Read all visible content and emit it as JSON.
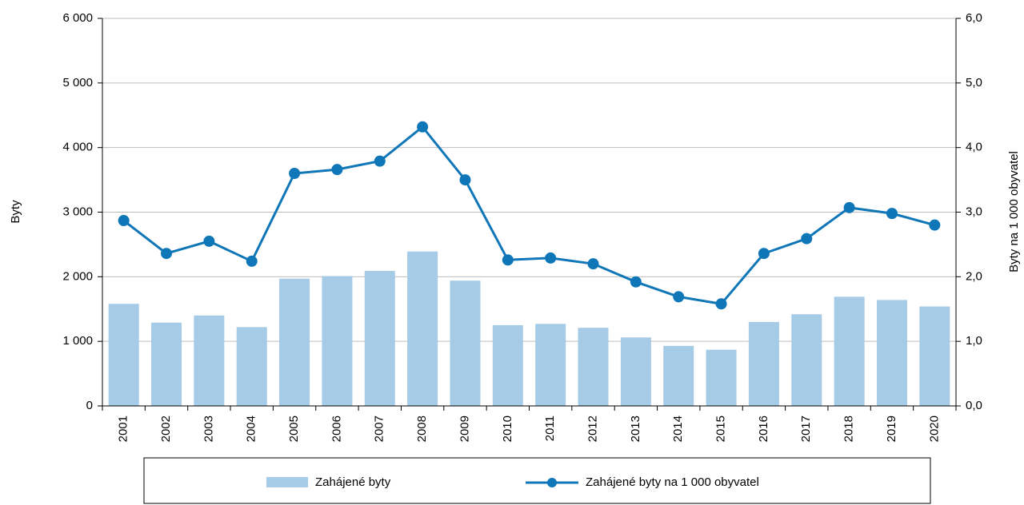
{
  "chart_data": {
    "type": "bar_line",
    "categories": [
      "2001",
      "2002",
      "2003",
      "2004",
      "2005",
      "2006",
      "2007",
      "2008",
      "2009",
      "2010",
      "2011",
      "2012",
      "2013",
      "2014",
      "2015",
      "2016",
      "2017",
      "2018",
      "2019",
      "2020"
    ],
    "series": [
      {
        "name": "Zahájené byty",
        "type": "bar",
        "color": "#a6cbe6",
        "axis": "y",
        "values": [
          1580,
          1290,
          1400,
          1220,
          1970,
          2010,
          2090,
          2390,
          1940,
          1250,
          1270,
          1210,
          1060,
          930,
          870,
          1300,
          1420,
          1690,
          1640,
          1540
        ]
      },
      {
        "name": "Zahájené byty na 1 000 obyvatel",
        "type": "line",
        "color": "#0f76b8",
        "axis": "y2",
        "values": [
          2.87,
          2.36,
          2.55,
          2.24,
          3.6,
          3.66,
          3.79,
          4.32,
          3.5,
          2.26,
          2.29,
          2.2,
          1.92,
          1.69,
          1.58,
          2.36,
          2.59,
          3.07,
          2.98,
          2.8
        ]
      }
    ],
    "y_label": "Byty",
    "y2_label": "Byty na 1 000 obyvatel",
    "ylim": [
      0,
      6000
    ],
    "yticks": [
      0,
      {
        "value": 1000,
        "label": "1 000"
      },
      {
        "value": 2000,
        "label": "2 000"
      },
      {
        "value": 3000,
        "label": "3 000"
      },
      {
        "value": 4000,
        "label": "4 000"
      },
      {
        "value": 5000,
        "label": "5 000"
      },
      {
        "value": 6000,
        "label": "6 000"
      }
    ],
    "y2lim": [
      0,
      6
    ],
    "y2ticks": [
      {
        "value": 0,
        "label": "0,0"
      },
      {
        "value": 1,
        "label": "1,0"
      },
      {
        "value": 2,
        "label": "2,0"
      },
      {
        "value": 3,
        "label": "3,0"
      },
      {
        "value": 4,
        "label": "4,0"
      },
      {
        "value": 5,
        "label": "5,0"
      },
      {
        "value": 6,
        "label": "6,0"
      }
    ],
    "grid": true,
    "legend": "bottom"
  }
}
